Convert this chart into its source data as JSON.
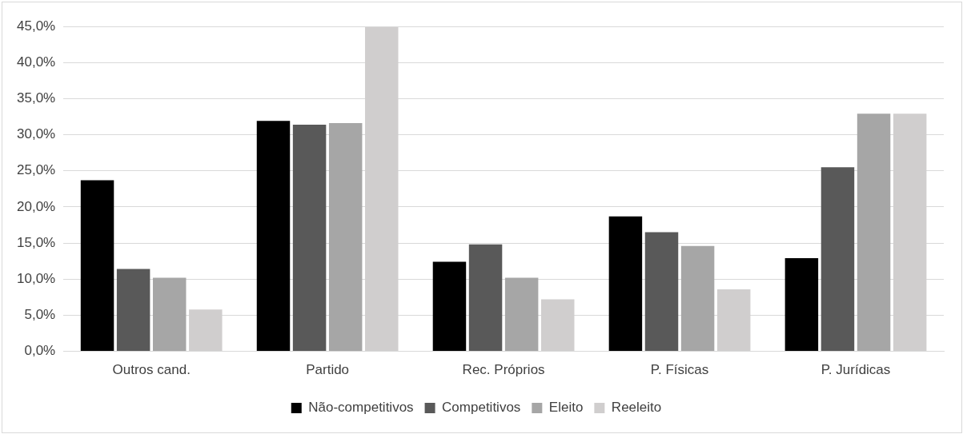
{
  "chart_data": {
    "type": "bar",
    "categories": [
      "Outros cand.",
      "Partido",
      "Rec. Próprios",
      "P. Físicas",
      "P. Jurídicas"
    ],
    "series": [
      {
        "name": "Não-competitivos",
        "color": "#000000",
        "values": [
          23.7,
          31.9,
          12.4,
          18.7,
          12.9
        ]
      },
      {
        "name": "Competitivos",
        "color": "#595959",
        "values": [
          11.4,
          31.4,
          14.8,
          16.5,
          25.5
        ]
      },
      {
        "name": "Eleito",
        "color": "#a6a6a6",
        "values": [
          10.2,
          31.6,
          10.2,
          14.6,
          32.9
        ]
      },
      {
        "name": "Reeleito",
        "color": "#d0cece",
        "values": [
          5.8,
          44.9,
          7.2,
          8.6,
          32.9
        ]
      }
    ],
    "ylim": [
      0,
      45
    ],
    "yticks": [
      {
        "value": 0,
        "label": "0,0%"
      },
      {
        "value": 5,
        "label": "5,0%"
      },
      {
        "value": 10,
        "label": "10,0%"
      },
      {
        "value": 15,
        "label": "15,0%"
      },
      {
        "value": 20,
        "label": "20,0%"
      },
      {
        "value": 25,
        "label": "25,0%"
      },
      {
        "value": 30,
        "label": "30,0%"
      },
      {
        "value": 35,
        "label": "35,0%"
      },
      {
        "value": 40,
        "label": "40,0%"
      },
      {
        "value": 45,
        "label": "45,0%"
      }
    ],
    "grid": "y",
    "legend": "bottom"
  }
}
